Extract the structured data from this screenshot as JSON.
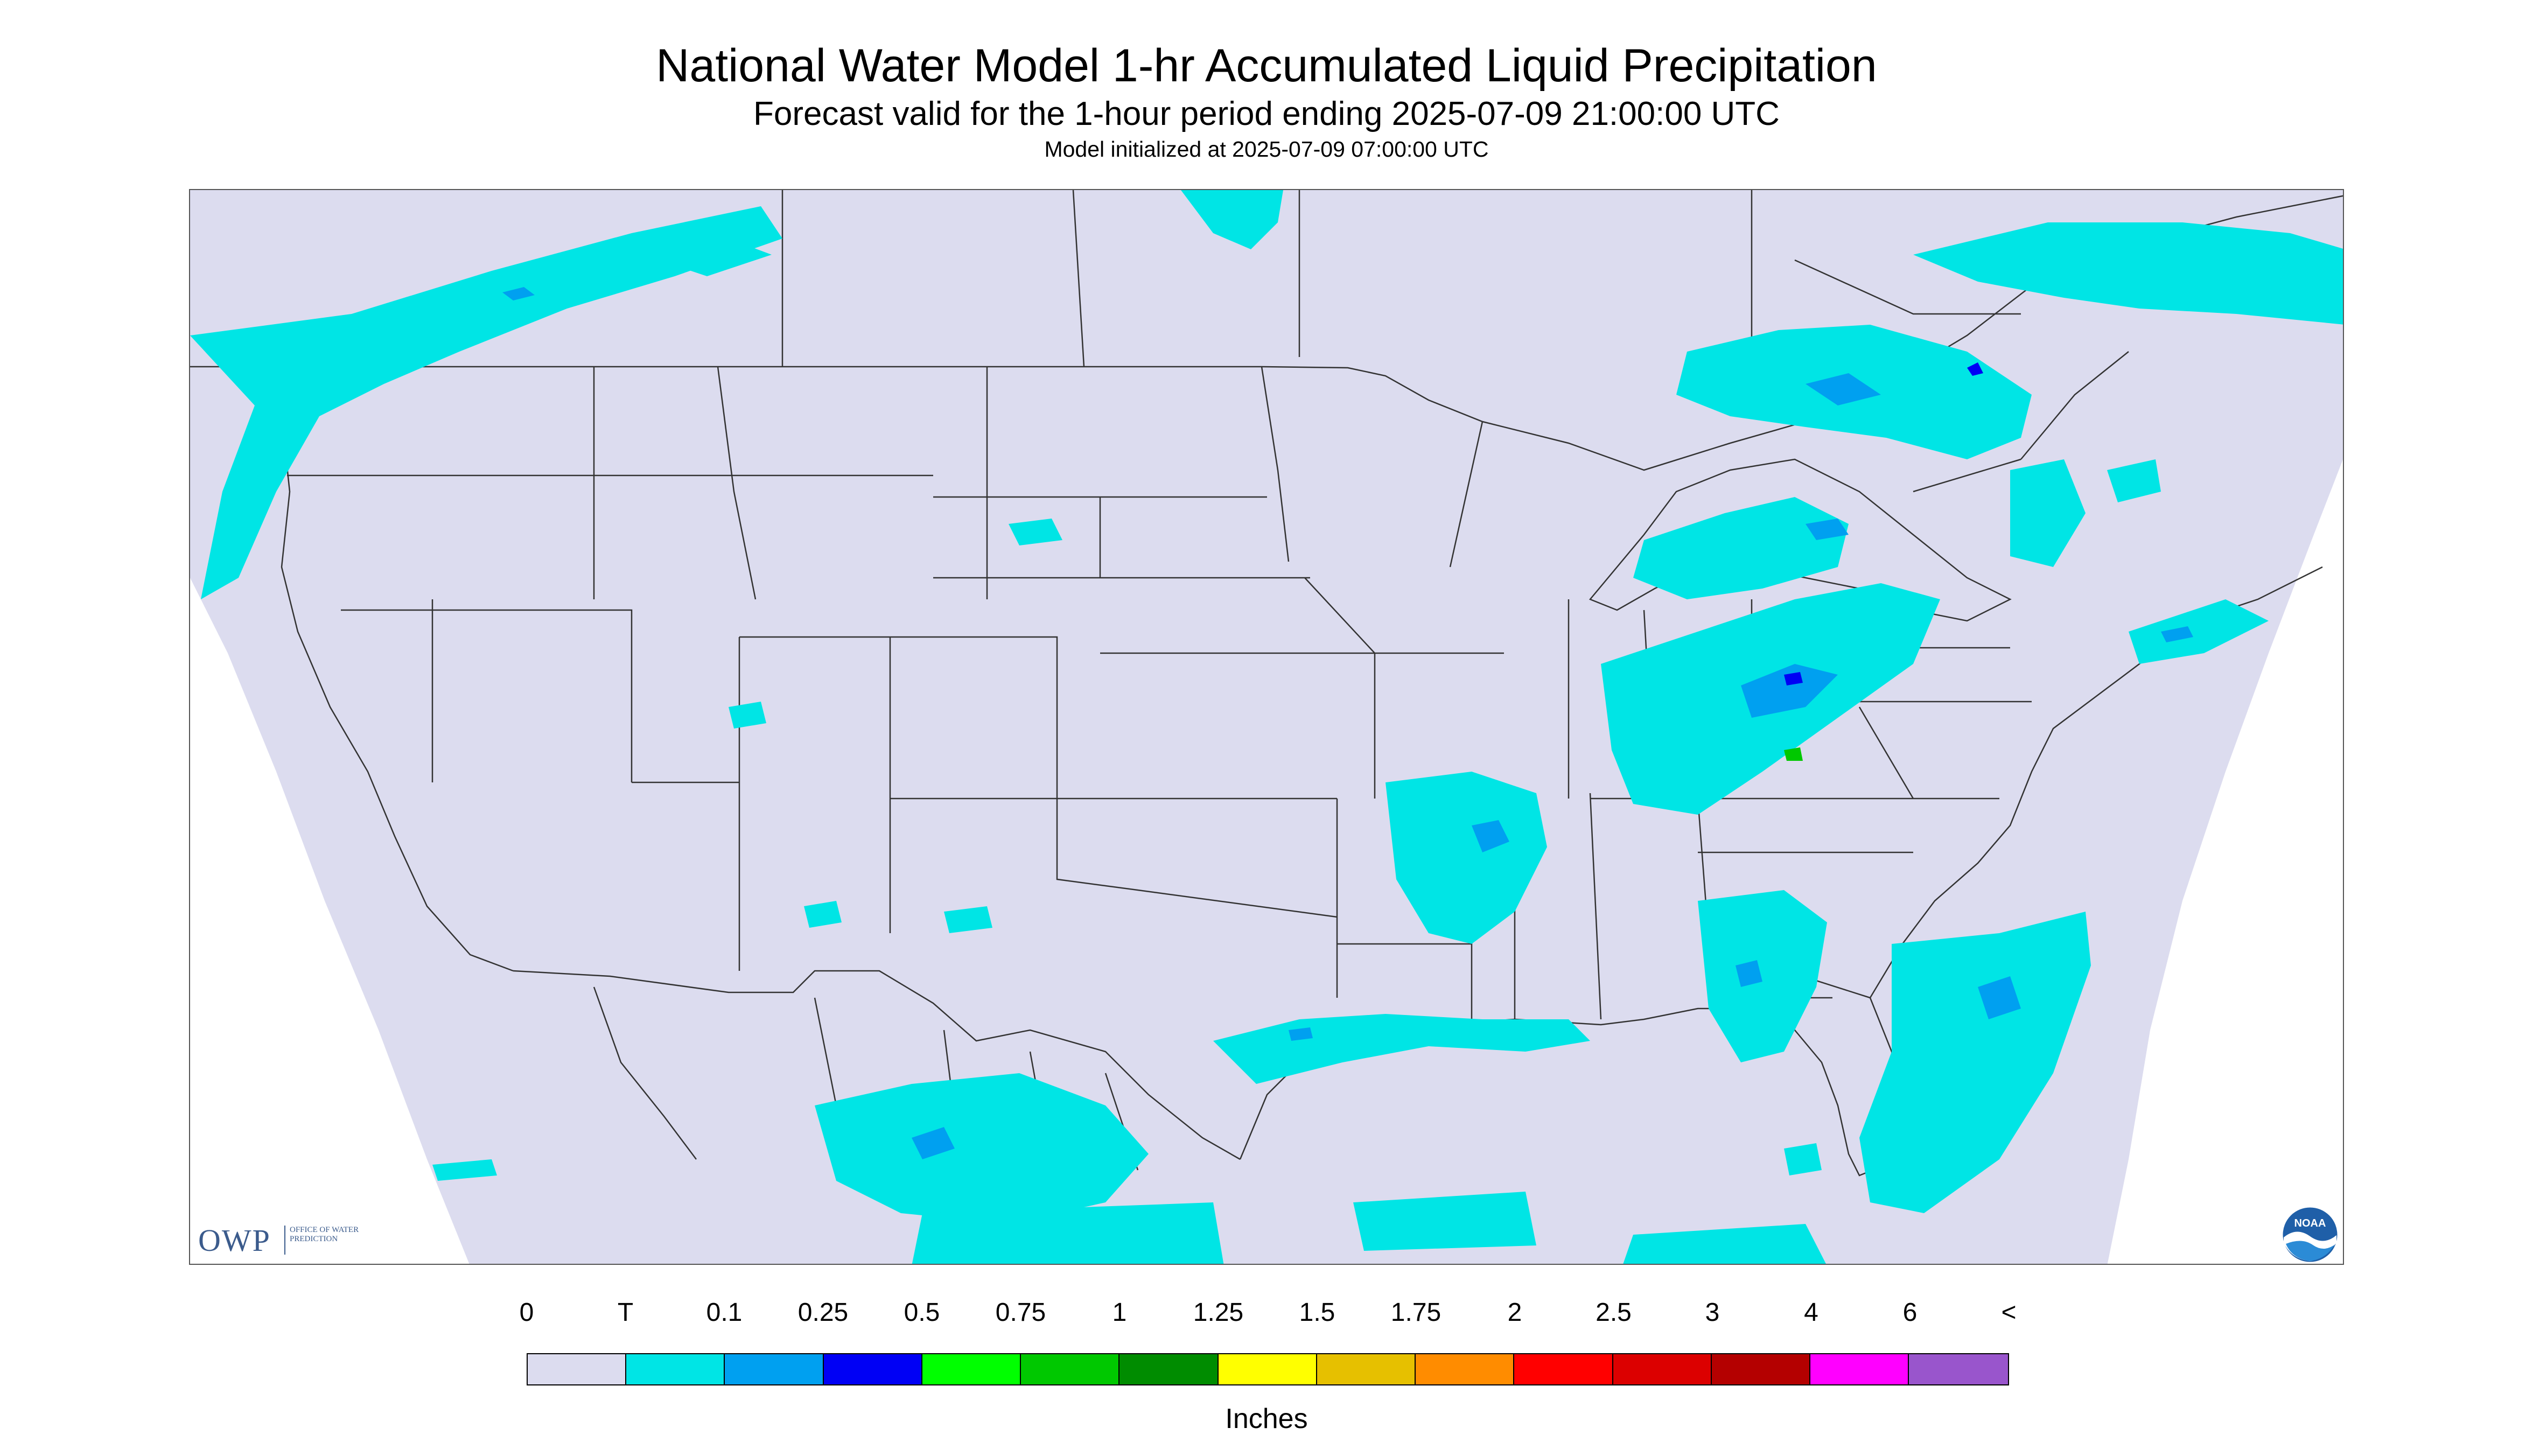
{
  "header": {
    "title": "National Water Model 1-hr Accumulated Liquid Precipitation",
    "subtitle": "Forecast valid for the 1-hour period ending 2025-07-09 21:00:00 UTC",
    "model_init": "Model initialized at 2025-07-09 07:00:00 UTC"
  },
  "map": {
    "background_color": "#dcdcef",
    "outside_color": "#ffffff",
    "boundary_color": "#333333",
    "logos": {
      "owp": {
        "abbr": "OWP",
        "subtitle": "OFFICE OF WATER PREDICTION"
      },
      "noaa": {
        "abbr": "NOAA"
      }
    }
  },
  "legend": {
    "labels": [
      "0",
      "T",
      "0.1",
      "0.25",
      "0.5",
      "0.75",
      "1",
      "1.25",
      "1.5",
      "1.75",
      "2",
      "2.5",
      "3",
      "4",
      "6",
      "<"
    ],
    "colors": [
      "#dcdcef",
      "#00e5e5",
      "#00a0f0",
      "#0000f5",
      "#00ff00",
      "#00c800",
      "#008c00",
      "#ffff00",
      "#e6c000",
      "#ff8c00",
      "#ff0000",
      "#dc0000",
      "#b40000",
      "#ff00ff",
      "#9955cc"
    ],
    "unit": "Inches"
  }
}
